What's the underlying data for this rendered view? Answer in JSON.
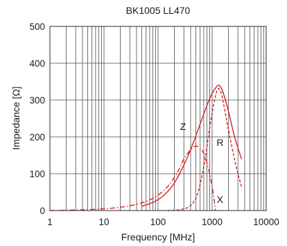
{
  "chart_data": {
    "type": "line",
    "title": "BK1005  LL470",
    "xlabel": "Frequency  [MHz]",
    "ylabel": "Impedance  [Ω]",
    "xscale": "log",
    "xlim": [
      1,
      10000
    ],
    "ylim": [
      0,
      500
    ],
    "xticks": [
      1,
      10,
      100,
      1000,
      10000
    ],
    "xtick_labels": [
      "1",
      "10",
      "100",
      "1000",
      "10000"
    ],
    "yticks": [
      0,
      100,
      200,
      300,
      400,
      500
    ],
    "ytick_labels": [
      "0",
      "100",
      "200",
      "300",
      "400",
      "500"
    ],
    "grid": true,
    "color": "#d42020",
    "series": [
      {
        "name": "Z",
        "style": "solid",
        "x": [
          50,
          80,
          120,
          180,
          250,
          350,
          450,
          600,
          800,
          1000,
          1200,
          1300,
          1400,
          1600,
          2000,
          2500,
          3000,
          3500
        ],
        "y": [
          12,
          22,
          38,
          65,
          100,
          145,
          185,
          235,
          285,
          318,
          336,
          340,
          338,
          320,
          270,
          210,
          170,
          140
        ]
      },
      {
        "name": "R",
        "style": "dashed",
        "x": [
          150,
          250,
          350,
          450,
          550,
          650,
          750,
          850,
          1000,
          1150,
          1250,
          1350,
          1500,
          1700,
          2000,
          2500,
          3000,
          3500
        ],
        "y": [
          0,
          2,
          8,
          22,
          50,
          95,
          145,
          200,
          265,
          310,
          328,
          330,
          315,
          275,
          220,
          150,
          100,
          65
        ]
      },
      {
        "name": "X",
        "style": "dashdot",
        "x": [
          1,
          2,
          4,
          8,
          15,
          30,
          60,
          100,
          150,
          200,
          250,
          300,
          400,
          500,
          600,
          700,
          800,
          900,
          1000,
          1100,
          1150
        ],
        "y": [
          0,
          1,
          2,
          4,
          7,
          13,
          25,
          42,
          65,
          90,
          115,
          140,
          165,
          175,
          170,
          155,
          130,
          100,
          65,
          25,
          0
        ]
      }
    ],
    "annotations": [
      {
        "text": "Z",
        "x": 290,
        "y": 228
      },
      {
        "text": "R",
        "x": 1400,
        "y": 185
      },
      {
        "text": "X",
        "x": 1400,
        "y": 30
      }
    ]
  }
}
